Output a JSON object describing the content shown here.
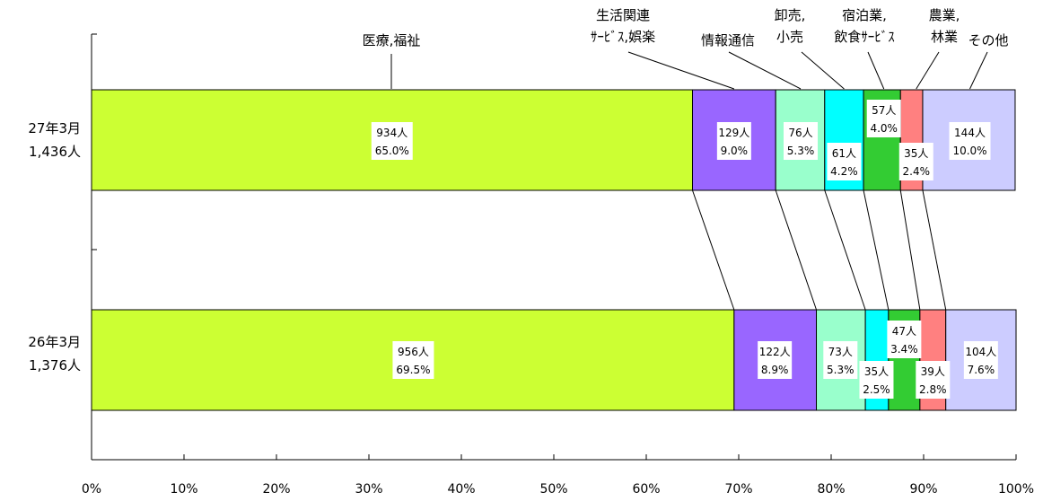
{
  "chart_data": {
    "type": "bar",
    "orientation": "horizontal",
    "stacked": "percent",
    "title": "",
    "xlabel": "",
    "ylabel": "",
    "xlim": [
      0,
      100
    ],
    "x_ticks": [
      "0%",
      "10%",
      "20%",
      "30%",
      "40%",
      "50%",
      "60%",
      "70%",
      "80%",
      "90%",
      "100%"
    ],
    "grid": false,
    "categories": [
      {
        "line1": "27年3月",
        "line2": "1,436人"
      },
      {
        "line1": "26年3月",
        "line2": "1,376人"
      }
    ],
    "series": [
      {
        "name_lines": [
          "医療,福祉"
        ],
        "color": "#ccff33",
        "counts": [
          "934人",
          "956人"
        ],
        "pcts": [
          "65.0%",
          "69.5%"
        ],
        "values": [
          65.0,
          69.5
        ]
      },
      {
        "name_lines": [
          "生活関連",
          "ｻｰﾋﾞｽ,娯楽"
        ],
        "color": "#9966ff",
        "counts": [
          "129人",
          "122人"
        ],
        "pcts": [
          "9.0%",
          "8.9%"
        ],
        "values": [
          9.0,
          8.9
        ]
      },
      {
        "name_lines": [
          "情報通信"
        ],
        "color": "#99ffcc",
        "counts": [
          "76人",
          "73人"
        ],
        "pcts": [
          "5.3%",
          "5.3%"
        ],
        "values": [
          5.3,
          5.3
        ]
      },
      {
        "name_lines": [
          "卸売,",
          "小売"
        ],
        "color": "#00ffff",
        "counts": [
          "61人",
          "35人"
        ],
        "pcts": [
          "4.2%",
          "2.5%"
        ],
        "values": [
          4.2,
          2.5
        ]
      },
      {
        "name_lines": [
          "宿泊業,",
          "飲食ｻｰﾋﾞｽ"
        ],
        "color": "#33cc33",
        "counts": [
          "57人",
          "47人"
        ],
        "pcts": [
          "4.0%",
          "3.4%"
        ],
        "values": [
          4.0,
          3.4
        ]
      },
      {
        "name_lines": [
          "農業,",
          "林業"
        ],
        "color": "#ff8080",
        "counts": [
          "35人",
          "39人"
        ],
        "pcts": [
          "2.4%",
          "2.8%"
        ],
        "values": [
          2.4,
          2.8
        ]
      },
      {
        "name_lines": [
          "その他"
        ],
        "color": "#ccccff",
        "counts": [
          "144人",
          "104人"
        ],
        "pcts": [
          "10.0%",
          "7.6%"
        ],
        "values": [
          10.0,
          7.6
        ]
      }
    ]
  }
}
